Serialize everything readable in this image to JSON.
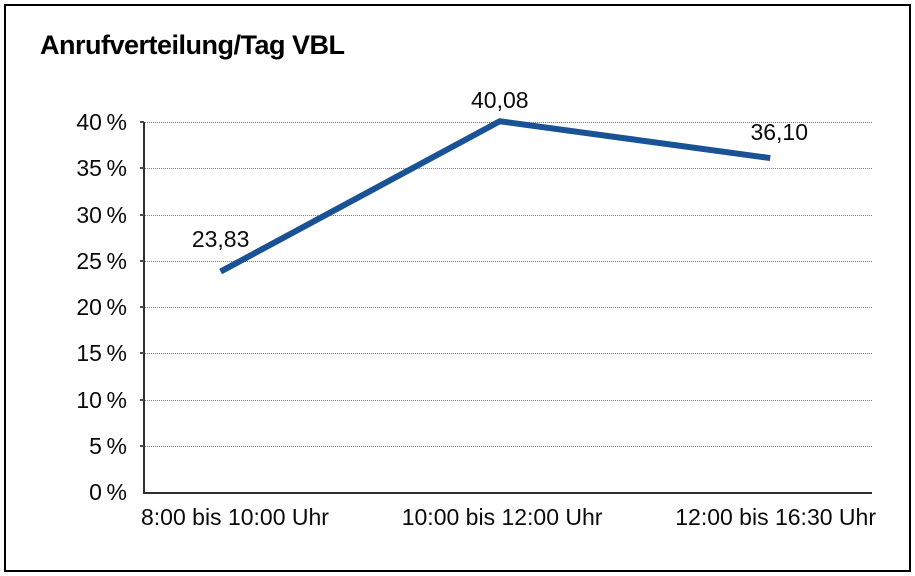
{
  "title": "Anrufverteilung/Tag VBL",
  "colors": {
    "line": "#1a5296",
    "axis": "#2f2f2f",
    "grid": "#7a7a7a",
    "frame_border": "#000000",
    "background": "#ffffff",
    "text": "#0a0a0a"
  },
  "chart_data": {
    "type": "line",
    "title": "Anrufverteilung/Tag VBL",
    "categories": [
      "8:00 bis 10:00 Uhr",
      "10:00 bis 12:00 Uhr",
      "12:00 bis 16:30 Uhr"
    ],
    "values": [
      23.83,
      40.08,
      36.1
    ],
    "data_labels": [
      "23,83",
      "40,08",
      "36,10"
    ],
    "xlabel": "",
    "ylabel": "",
    "ylim": [
      0,
      40
    ],
    "ytick_step": 5,
    "ytick_labels": [
      "0 %",
      "5 %",
      "10 %",
      "15 %",
      "20 %",
      "25 %",
      "30 %",
      "35 %",
      "40 %"
    ],
    "grid": "horizontal-dotted",
    "legend_position": "none",
    "line_color": "#1a5296",
    "line_width": 6,
    "markers": "none"
  }
}
